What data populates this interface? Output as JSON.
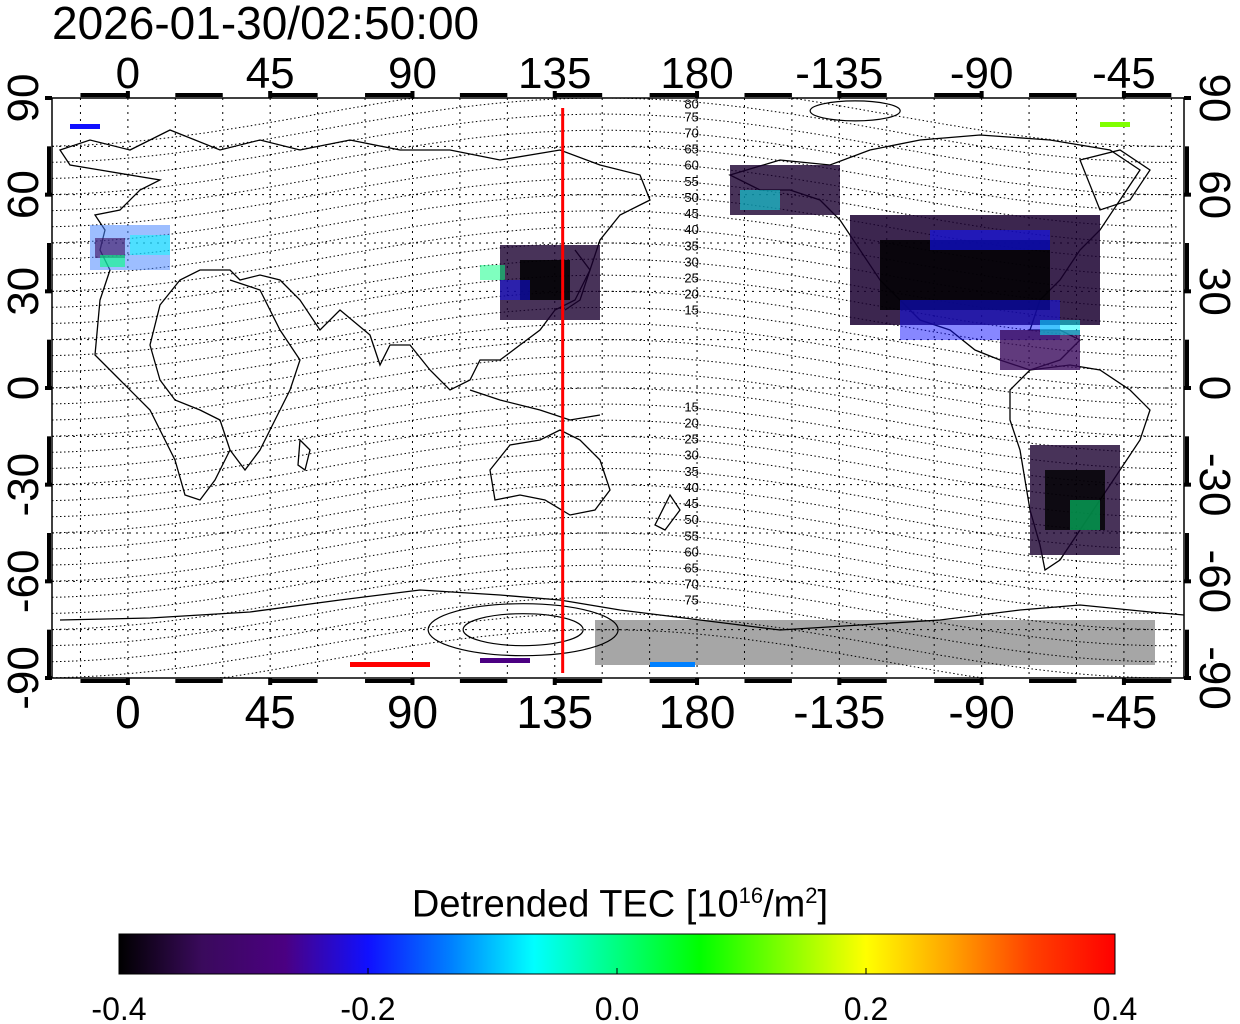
{
  "timestamp": "2026-01-30/02:50:00",
  "map": {
    "lon_ticks": [
      "0",
      "45",
      "90",
      "135",
      "180",
      "-135",
      "-90",
      "-45"
    ],
    "lon_values": [
      0,
      45,
      90,
      135,
      180,
      225,
      270,
      315
    ],
    "lat_ticks": [
      "90",
      "60",
      "30",
      "0",
      "-30",
      "-60",
      "-90"
    ],
    "lat_values": [
      90,
      60,
      30,
      0,
      -30,
      -60,
      -90
    ],
    "lon_range": [
      -24,
      334
    ],
    "lat_range": [
      -90,
      90
    ],
    "marker_longitude": 137.5,
    "marker_color": "#ff0000",
    "contour_labels_north": [
      "80",
      "75",
      "70",
      "65",
      "60",
      "55",
      "50",
      "45",
      "40",
      "35",
      "30",
      "25",
      "20",
      "15"
    ],
    "contour_labels_south": [
      "15",
      "20",
      "25",
      "30",
      "35",
      "40",
      "45",
      "50",
      "55",
      "60",
      "65",
      "70",
      "75"
    ]
  },
  "colorbar": {
    "title_prefix": "Detrended TEC  [10",
    "title_exp": "16",
    "title_mid": "/m",
    "title_exp2": "2",
    "title_suffix": "]",
    "min": -0.4,
    "max": 0.4,
    "tick_labels": [
      "-0.4",
      "-0.2",
      "0.0",
      "0.2",
      "0.4"
    ],
    "colors": [
      "#000000",
      "#3a0a5c",
      "#4b0082",
      "#1010ff",
      "#0080ff",
      "#00ffff",
      "#00ff80",
      "#00ff00",
      "#80ff00",
      "#ffff00",
      "#ffa500",
      "#ff4000",
      "#ff0000"
    ]
  }
}
